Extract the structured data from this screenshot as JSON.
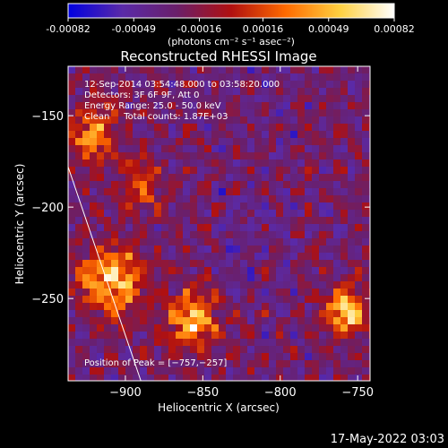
{
  "chart_data": {
    "type": "heatmap",
    "title": "Reconstructed RHESSI Image",
    "colorbar": {
      "tick_labels": [
        "-0.00082",
        "-0.00049",
        "-0.00016",
        "0.00016",
        "0.00049",
        "0.00082"
      ],
      "ticks": [
        -0.00082,
        -0.00049,
        -0.00016,
        0.00016,
        0.00049,
        0.00082
      ],
      "range": [
        -0.00082,
        0.00082
      ],
      "unit_label": "(photons cm⁻² s⁻¹ asec⁻²)",
      "colors": [
        "#0000e0",
        "#5a2aa8",
        "#6a1f6a",
        "#b01010",
        "#ff6a00",
        "#ffd040",
        "#ffffff"
      ]
    },
    "xlabel": "Heliocentric X (arcsec)",
    "ylabel": "Heliocentric Y (arcsec)",
    "xlim": [
      -937,
      -742
    ],
    "ylim": [
      -295,
      -123
    ],
    "xticks": [
      -900,
      -850,
      -800,
      -750
    ],
    "xtick_labels": [
      "−900",
      "−850",
      "−800",
      "−750"
    ],
    "yticks": [
      -150,
      -200,
      -250
    ],
    "ytick_labels": [
      "−150",
      "−200",
      "−250"
    ],
    "peak_position": [
      -757,
      -257
    ],
    "bright_regions": [
      {
        "x": -910,
        "y": -240,
        "r": 18,
        "level": 1.0
      },
      {
        "x": -920,
        "y": -160,
        "r": 14,
        "level": 0.7
      },
      {
        "x": -857,
        "y": -262,
        "r": 16,
        "level": 0.85
      },
      {
        "x": -757,
        "y": -257,
        "r": 12,
        "level": 1.0
      },
      {
        "x": -890,
        "y": -190,
        "r": 12,
        "level": 0.55
      }
    ],
    "limb_line": [
      [
        -937,
        -178
      ],
      [
        -890,
        -295
      ]
    ]
  },
  "annotations": [
    "12-Sep-2014 03:54:48.000 to 03:58:20.000",
    "Detectors: 3F 6F 9F, Att 0",
    "Energy Range: 25.0 - 50.0 keV",
    "Clean     Total counts: 1.87E+03"
  ],
  "peak_label": "Position of Peak = [−757,−257]",
  "footer_date": "17-May-2022 03:03"
}
